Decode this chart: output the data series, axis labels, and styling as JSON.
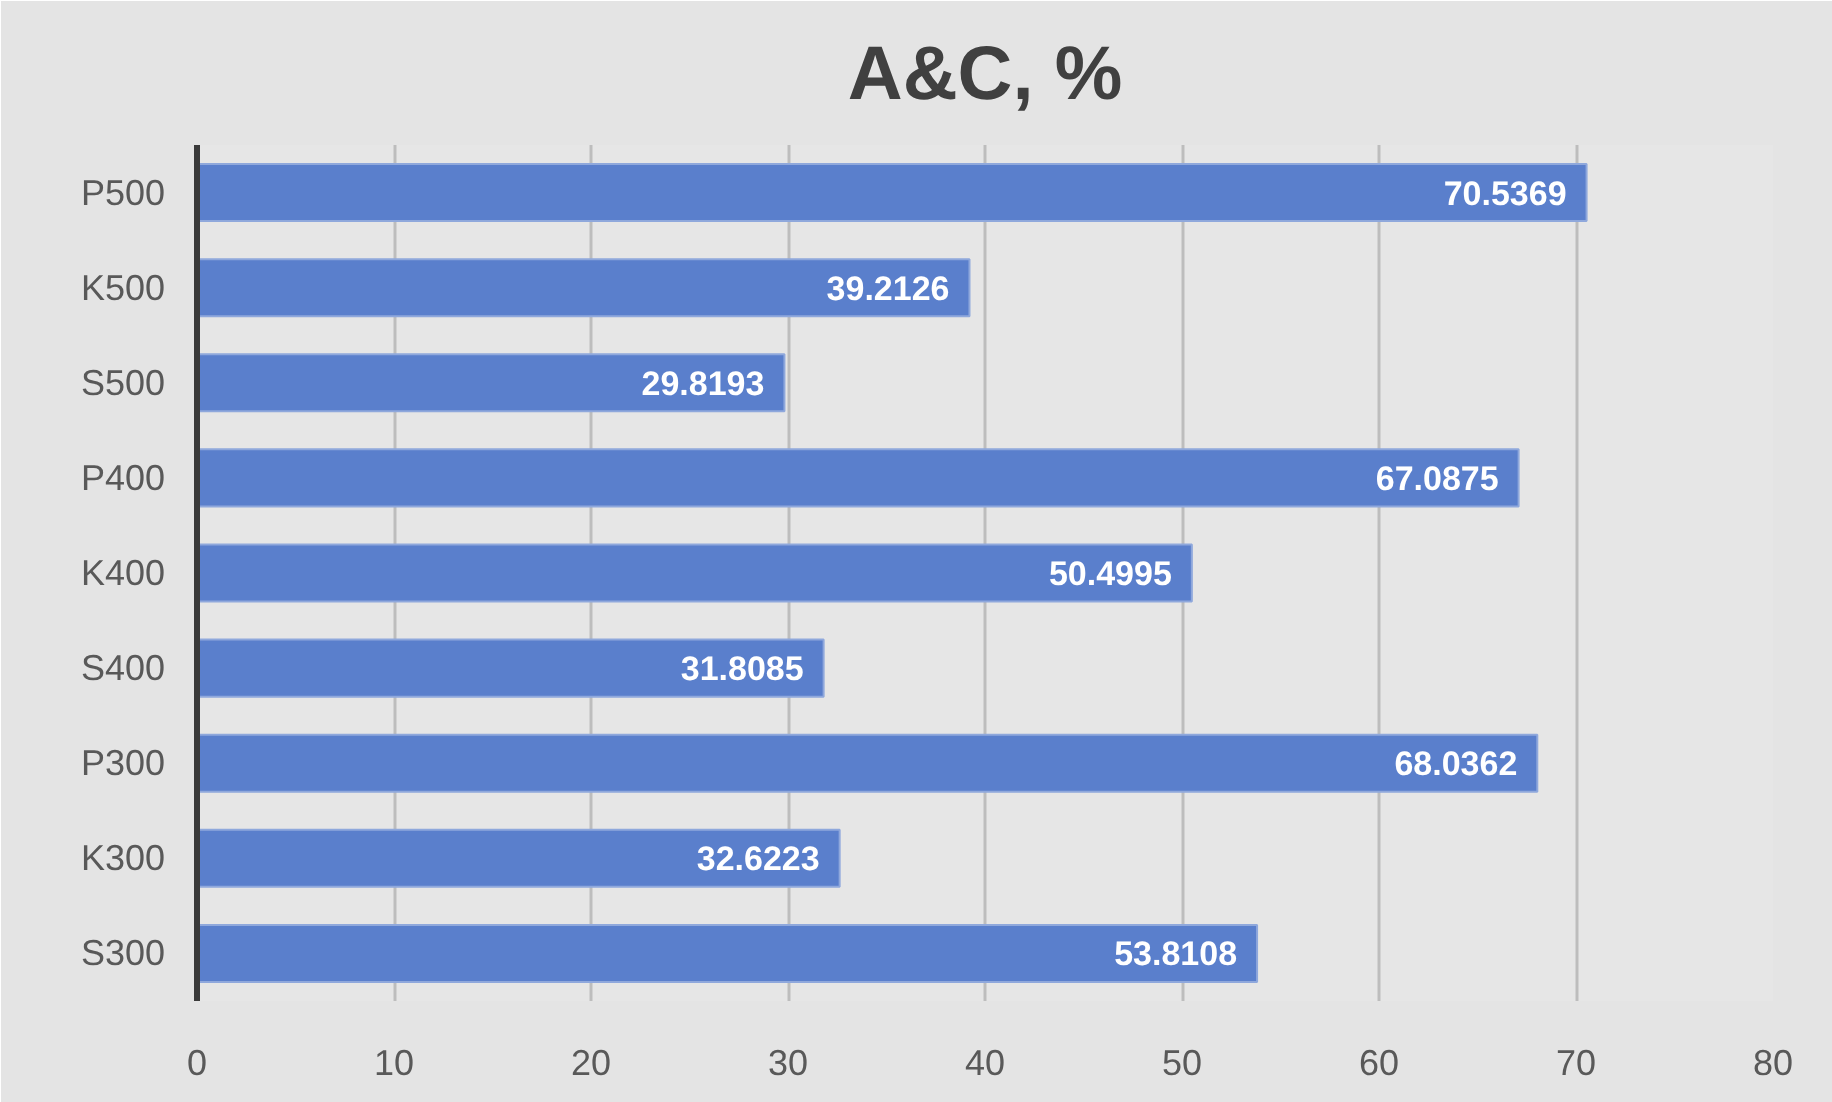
{
  "chart_data": {
    "type": "bar",
    "orientation": "horizontal",
    "title": "A&C, %",
    "categories": [
      "P500",
      "K500",
      "S500",
      "P400",
      "K400",
      "S400",
      "P300",
      "K300",
      "S300"
    ],
    "values": [
      70.5369,
      39.2126,
      29.8193,
      67.0875,
      50.4995,
      31.8085,
      68.0362,
      32.6223,
      53.8108
    ],
    "color": "#5a7fcc",
    "xlim": [
      0,
      80
    ],
    "xticks": [
      0,
      10,
      20,
      30,
      40,
      50,
      60,
      70,
      80
    ],
    "grid": "x",
    "data_labels": true
  }
}
